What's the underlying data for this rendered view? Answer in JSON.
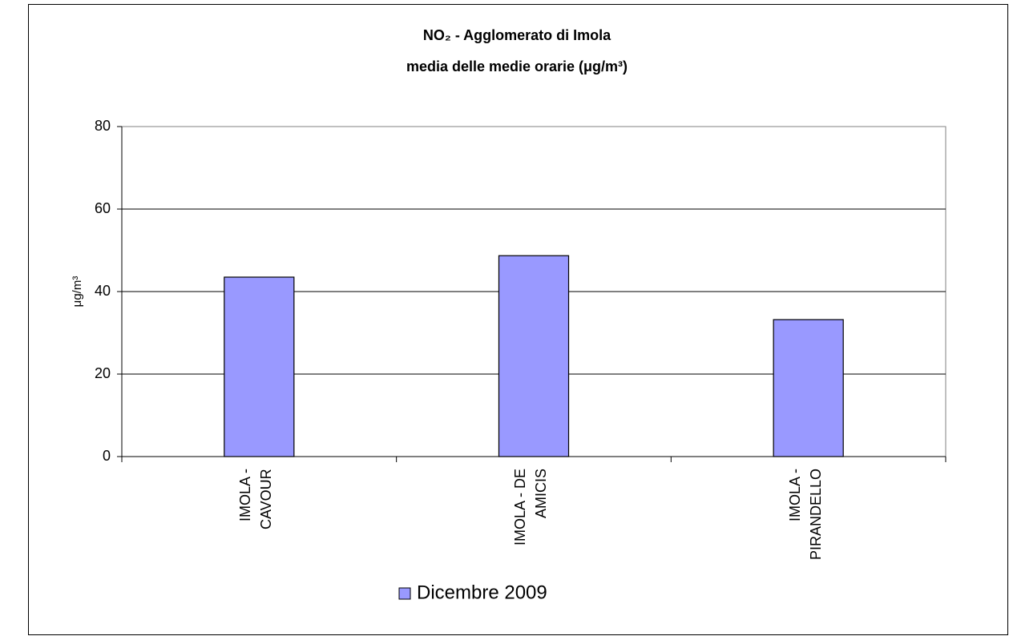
{
  "chart_data": {
    "type": "bar",
    "title": "NO₂ - Agglomerato di Imola",
    "subtitle": "media delle medie orarie (μg/m³)",
    "y_label": "μg/m³",
    "categories": [
      "IMOLA - CAVOUR",
      "IMOLA - DE AMICIS",
      "IMOLA - PIRANDELLO"
    ],
    "series": [
      {
        "name": "Dicembre 2009",
        "color": "#9999ff",
        "values": [
          43.5,
          48.7,
          33.2
        ]
      }
    ],
    "ylim": [
      0,
      80
    ],
    "yticks": [
      0,
      20,
      40,
      60,
      80
    ],
    "grid": true,
    "legend": "bottom"
  }
}
